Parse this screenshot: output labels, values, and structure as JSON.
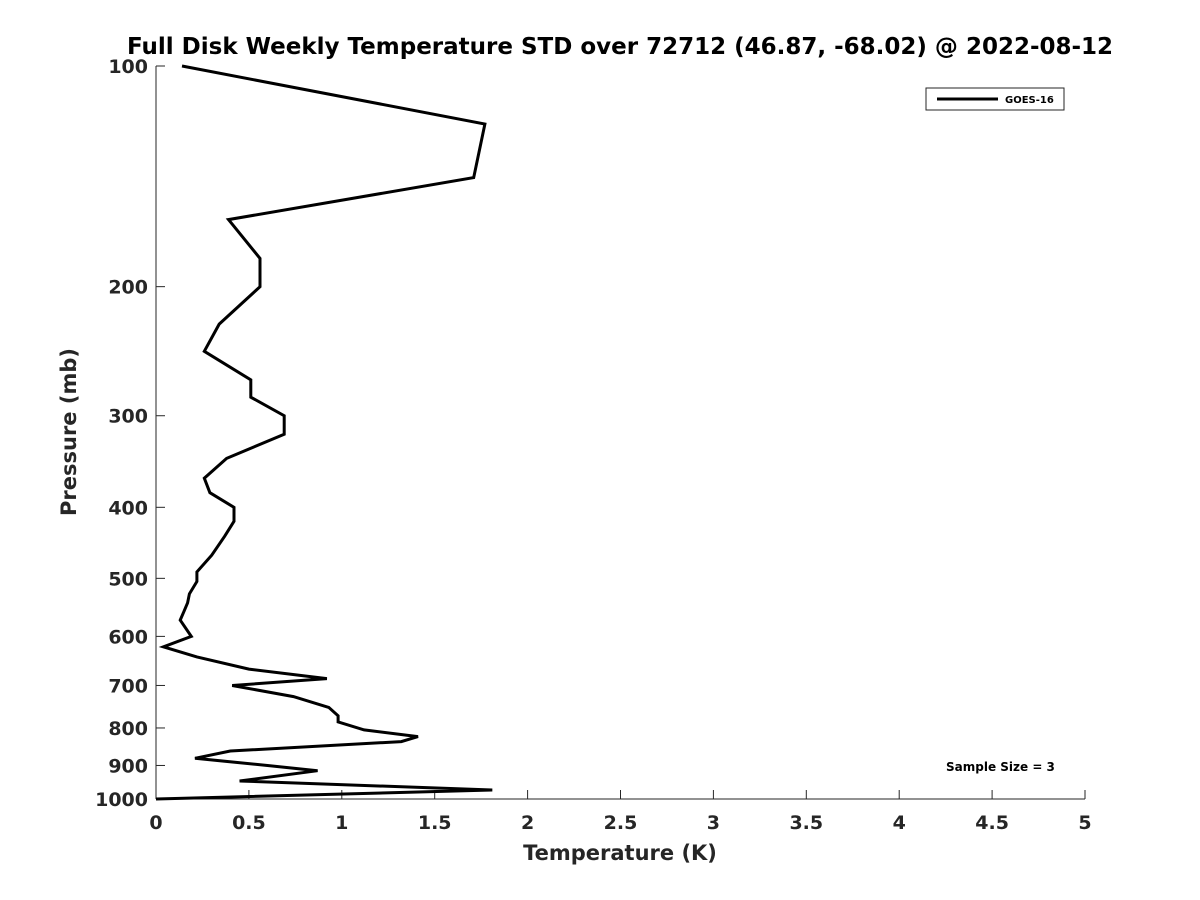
{
  "chart_data": {
    "type": "line",
    "title": "Full Disk Weekly Temperature STD over 72712 (46.87, -68.02) @ 2022-08-12",
    "xlabel": "Temperature (K)",
    "ylabel": "Pressure (mb)",
    "xlim": [
      0,
      5
    ],
    "ylim": [
      100,
      1000
    ],
    "y_scale": "log",
    "y_reversed": true,
    "xticks": [
      "0",
      "0.5",
      "1",
      "1.5",
      "2",
      "2.5",
      "3",
      "3.5",
      "4",
      "4.5",
      "5"
    ],
    "xtick_values": [
      0,
      0.5,
      1,
      1.5,
      2,
      2.5,
      3,
      3.5,
      4,
      4.5,
      5
    ],
    "yticks": [
      "100",
      "200",
      "300",
      "400",
      "500",
      "600",
      "700",
      "800",
      "900",
      "1000"
    ],
    "ytick_values": [
      100,
      200,
      300,
      400,
      500,
      600,
      700,
      800,
      900,
      1000
    ],
    "grid": false,
    "legend_position": "top-right",
    "annotation": "Sample Size = 3",
    "series": [
      {
        "name": "GOES-16",
        "color": "#000000",
        "points": [
          [
            0.14,
            100
          ],
          [
            1.77,
            120
          ],
          [
            1.71,
            142
          ],
          [
            0.39,
            162
          ],
          [
            0.56,
            183
          ],
          [
            0.56,
            200
          ],
          [
            0.34,
            225
          ],
          [
            0.26,
            245
          ],
          [
            0.51,
            268
          ],
          [
            0.51,
            283
          ],
          [
            0.69,
            300
          ],
          [
            0.69,
            318
          ],
          [
            0.38,
            343
          ],
          [
            0.26,
            365
          ],
          [
            0.29,
            382
          ],
          [
            0.42,
            400
          ],
          [
            0.42,
            418
          ],
          [
            0.37,
            438
          ],
          [
            0.3,
            465
          ],
          [
            0.22,
            490
          ],
          [
            0.22,
            505
          ],
          [
            0.18,
            525
          ],
          [
            0.17,
            540
          ],
          [
            0.15,
            555
          ],
          [
            0.13,
            570
          ],
          [
            0.19,
            600
          ],
          [
            0.04,
            620
          ],
          [
            0.22,
            640
          ],
          [
            0.5,
            665
          ],
          [
            0.92,
            685
          ],
          [
            0.41,
            700
          ],
          [
            0.74,
            725
          ],
          [
            0.93,
            750
          ],
          [
            0.98,
            770
          ],
          [
            0.98,
            785
          ],
          [
            1.12,
            805
          ],
          [
            1.41,
            822
          ],
          [
            1.32,
            835
          ],
          [
            0.4,
            860
          ],
          [
            0.21,
            880
          ],
          [
            0.6,
            900
          ],
          [
            0.87,
            915
          ],
          [
            0.45,
            945
          ],
          [
            1.81,
            972
          ],
          [
            0.0,
            1000
          ]
        ]
      }
    ]
  }
}
